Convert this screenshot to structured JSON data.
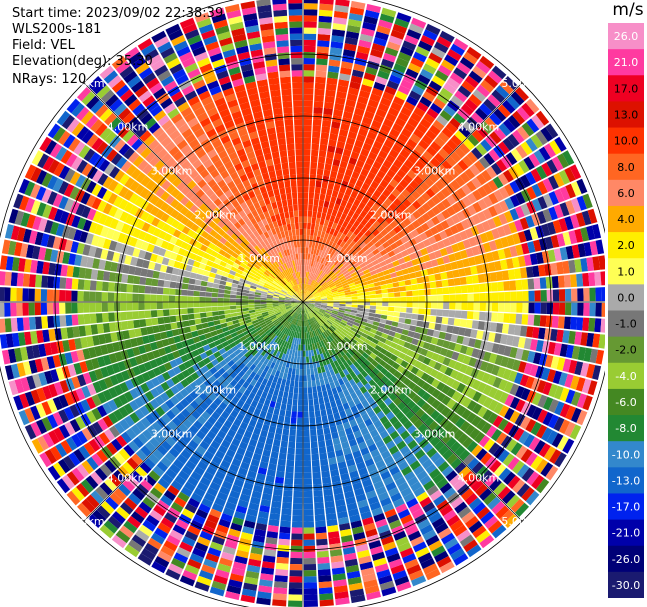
{
  "header": {
    "start_time": "Start time: 2023/09/02 22:38:39",
    "instrument": "WLS200s-181",
    "field": "Field: VEL",
    "elevation": "Elevation(deg): 35.30",
    "nrays": "NRays: 120"
  },
  "chart_data": {
    "type": "ppi",
    "field": "VEL",
    "nrays": 120,
    "elevation_deg": 35.3,
    "range_rings_km": [
      1.0,
      2.0,
      3.0,
      4.0,
      5.0
    ],
    "ring_labels": [
      "1.00km",
      "2.00km",
      "3.00km",
      "4.00km",
      "5.00km"
    ],
    "colorbar": {
      "unit": "m/s",
      "ticks": [
        26.0,
        21.0,
        17.0,
        13.0,
        10.0,
        8.0,
        6.0,
        4.0,
        2.0,
        1.0,
        0.0,
        -1.0,
        -2.0,
        -4.0,
        -6.0,
        -8.0,
        -10.0,
        -13.0,
        -17.0,
        -21.0,
        -26.0,
        -30.0
      ],
      "tick_labels": [
        "26.0",
        "21.0",
        "17.0",
        "13.0",
        "10.0",
        "8.0",
        "6.0",
        "4.0",
        "2.0",
        "1.0",
        "0.0",
        "-1.0",
        "-2.0",
        "-4.0",
        "-6.0",
        "-8.0",
        "-10.0",
        "-13.0",
        "-17.0",
        "-21.0",
        "-26.0",
        "-30.0"
      ],
      "colors": [
        "#f78fc8",
        "#ff3aa0",
        "#ee0022",
        "#dd1100",
        "#ff3300",
        "#ff6622",
        "#ff8866",
        "#ffaa00",
        "#ffee00",
        "#ffff55",
        "#aaaaaa",
        "#777777",
        "#669933",
        "#99cc33",
        "#448822",
        "#228833",
        "#3388cc",
        "#1166cc",
        "#0022ee",
        "#0000aa",
        "#000077",
        "#1a1a70"
      ]
    }
  }
}
